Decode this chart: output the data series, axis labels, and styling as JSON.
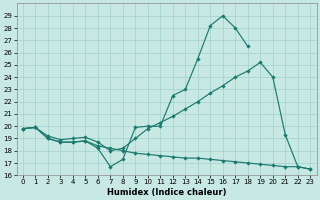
{
  "xlabel": "Humidex (Indice chaleur)",
  "background_color": "#c8e8e4",
  "grid_color": "#a8d4d0",
  "line_color": "#1a7a6e",
  "xlim": [
    -0.5,
    23.5
  ],
  "ylim": [
    16,
    30
  ],
  "yticks": [
    16,
    17,
    18,
    19,
    20,
    21,
    22,
    23,
    24,
    25,
    26,
    27,
    28,
    29
  ],
  "xticks": [
    0,
    1,
    2,
    3,
    4,
    5,
    6,
    7,
    8,
    9,
    10,
    11,
    12,
    13,
    14,
    15,
    16,
    17,
    18,
    19,
    20,
    21,
    22,
    23
  ],
  "s1_x": [
    0,
    1,
    2,
    3,
    4,
    5,
    6,
    7,
    8,
    9,
    10,
    11,
    12,
    13,
    14,
    15,
    16,
    17,
    18
  ],
  "s1_y": [
    19.8,
    19.9,
    19.0,
    18.7,
    18.7,
    18.8,
    18.2,
    16.7,
    17.3,
    19.9,
    20.0,
    20.0,
    22.5,
    23.0,
    25.5,
    28.2,
    29.0,
    28.0,
    26.5
  ],
  "s2_x": [
    0,
    1,
    2,
    3,
    4,
    5,
    6,
    7,
    8,
    9,
    10,
    11,
    12,
    13,
    14,
    15,
    16,
    17,
    18,
    19,
    20,
    21,
    22,
    23
  ],
  "s2_y": [
    19.8,
    19.9,
    19.0,
    18.7,
    18.7,
    18.8,
    18.4,
    18.2,
    18.0,
    17.8,
    17.7,
    17.6,
    17.5,
    17.4,
    17.4,
    17.3,
    17.2,
    17.1,
    17.0,
    16.9,
    16.8,
    16.7,
    16.7,
    16.5
  ],
  "s3_x": [
    0,
    1,
    2,
    3,
    4,
    5,
    6,
    7,
    8,
    9,
    10,
    11,
    12,
    13,
    14,
    15,
    16,
    17,
    18,
    19,
    20,
    21,
    22,
    23
  ],
  "s3_y": [
    19.8,
    19.9,
    19.2,
    18.9,
    19.0,
    19.1,
    18.7,
    18.0,
    18.2,
    19.0,
    19.8,
    20.3,
    20.8,
    21.4,
    22.0,
    22.7,
    23.3,
    24.0,
    24.5,
    25.2,
    24.0,
    19.3,
    16.7,
    16.5
  ]
}
